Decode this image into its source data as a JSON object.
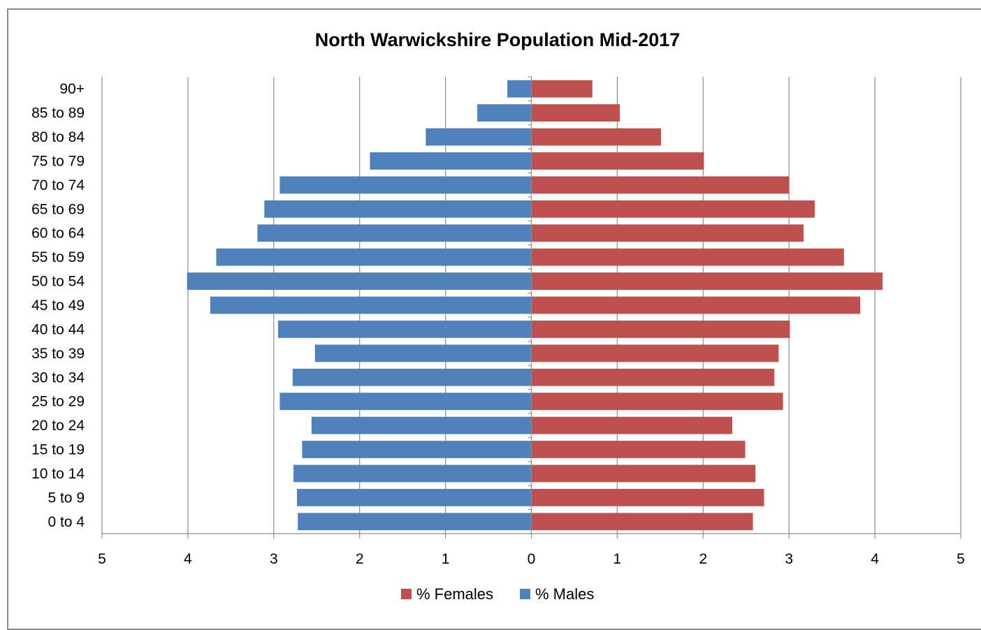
{
  "chart_data": {
    "type": "bar",
    "orientation": "horizontal",
    "title": "North Warwickshire Population Mid-2017",
    "categories": [
      "0 to 4",
      "5 to 9",
      "10 to 14",
      "15 to 19",
      "20 to 24",
      "25 to 29",
      "30 to 34",
      "35 to 39",
      "40 to 44",
      "45 to 49",
      "50 to 54",
      "55 to 59",
      "60 to 64",
      "65 to 69",
      "70 to 74",
      "75 to 79",
      "80 to 84",
      "85 to 89",
      "90+"
    ],
    "series": [
      {
        "name": "% Females",
        "color": "#c0504d",
        "values": [
          2.58,
          2.71,
          2.61,
          2.49,
          2.34,
          2.93,
          2.83,
          2.88,
          3.01,
          3.83,
          4.09,
          3.64,
          3.17,
          3.3,
          3.0,
          2.01,
          1.51,
          1.03,
          0.71
        ]
      },
      {
        "name": "% Males",
        "color": "#4f81bd",
        "values": [
          2.72,
          2.73,
          2.77,
          2.67,
          2.56,
          2.93,
          2.78,
          2.52,
          2.95,
          3.74,
          4.01,
          3.67,
          3.19,
          3.11,
          2.93,
          1.88,
          1.23,
          0.63,
          0.28
        ]
      }
    ],
    "xlim": [
      -5,
      5
    ],
    "xticks": [
      -5,
      -4,
      -3,
      -2,
      -1,
      0,
      1,
      2,
      3,
      4,
      5
    ],
    "xtick_labels": [
      "5",
      "4",
      "3",
      "2",
      "1",
      "0",
      "1",
      "2",
      "3",
      "4",
      "5"
    ],
    "xlabel": "",
    "ylabel": "",
    "grid": "vertical",
    "legend_position": "bottom"
  }
}
